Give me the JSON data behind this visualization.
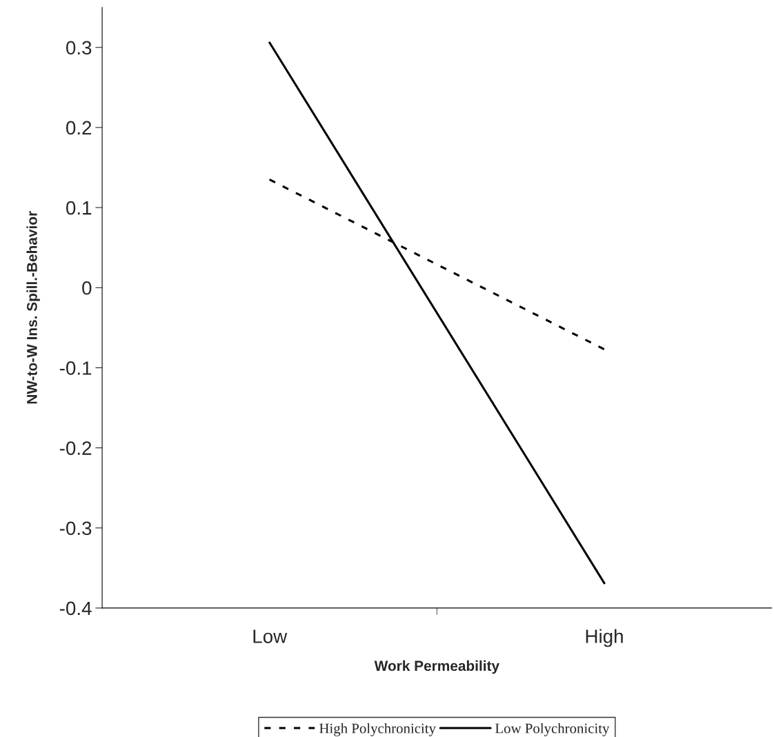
{
  "chart_data": {
    "type": "line",
    "xlabel": "Work Permeability",
    "ylabel": "NW-to-W Ins. Spill.-Behavior",
    "categories": [
      "Low",
      "High"
    ],
    "series": [
      {
        "name": "High Polychronicity",
        "color": "#000000",
        "values": [
          0.135,
          -0.077
        ],
        "line_style": "dotted"
      },
      {
        "name": "Low Polychronicity",
        "color": "#000000",
        "values": [
          0.306,
          -0.369
        ],
        "line_style": "solid"
      }
    ],
    "ylim": [
      -0.4,
      0.35
    ],
    "yticks": [
      -0.4,
      -0.3,
      -0.2,
      -0.1,
      0,
      0.1,
      0.2,
      0.3
    ],
    "grid": false,
    "legend": "bottom",
    "marker": "none"
  }
}
